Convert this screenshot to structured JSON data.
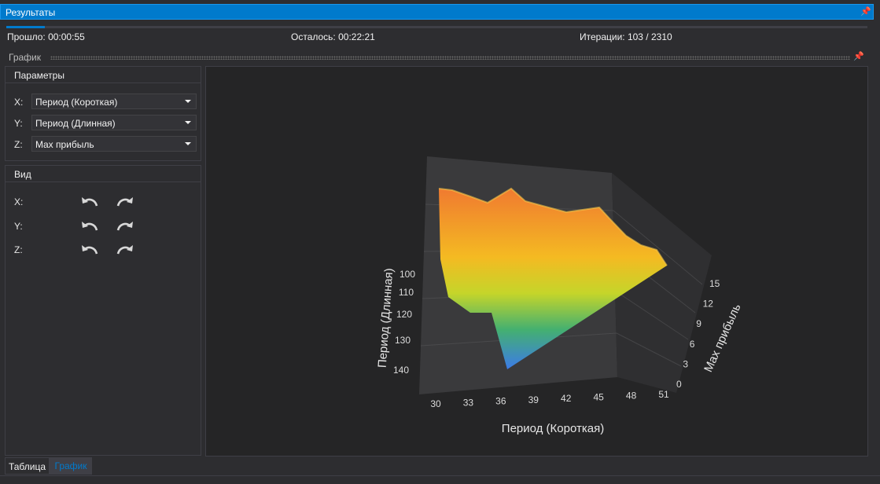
{
  "window": {
    "title": "Результаты",
    "pin_icon": "pin-icon"
  },
  "progress": {
    "fraction": 0.045
  },
  "stats": {
    "elapsed": "Прошло: 00:00:55",
    "remaining": "Осталось: 00:22:21",
    "iterations": "Итерации: 103 / 2310"
  },
  "chart_panel": {
    "title": "График"
  },
  "params": {
    "title": "Параметры",
    "x_label": "X:",
    "x_value": "Период (Короткая)",
    "y_label": "Y:",
    "y_value": "Период (Длинная)",
    "z_label": "Z:",
    "z_value": "Max прибыль"
  },
  "view": {
    "title": "Вид",
    "x_label": "X:",
    "y_label": "Y:",
    "z_label": "Z:"
  },
  "chart_data": {
    "type": "surface3d",
    "xlabel": "Период (Короткая)",
    "ylabel": "Период (Длинная)",
    "zlabel": "Max прибыль",
    "x_ticks": [
      "30",
      "33",
      "36",
      "39",
      "42",
      "45",
      "48",
      "51"
    ],
    "y_ticks": [
      "100",
      "110",
      "120",
      "130",
      "140"
    ],
    "z_ticks": [
      "0",
      "3",
      "6",
      "9",
      "12",
      "15"
    ],
    "colormap": [
      "#3c7be8",
      "#44b070",
      "#c5d52a",
      "#f4ba22",
      "#f07a30"
    ]
  },
  "tabs": [
    {
      "label": "Таблица",
      "active": false
    },
    {
      "label": "График",
      "active": true
    }
  ],
  "colors": {
    "accent": "#007acc",
    "background": "#2d2d30",
    "plot_bg": "#252526"
  }
}
